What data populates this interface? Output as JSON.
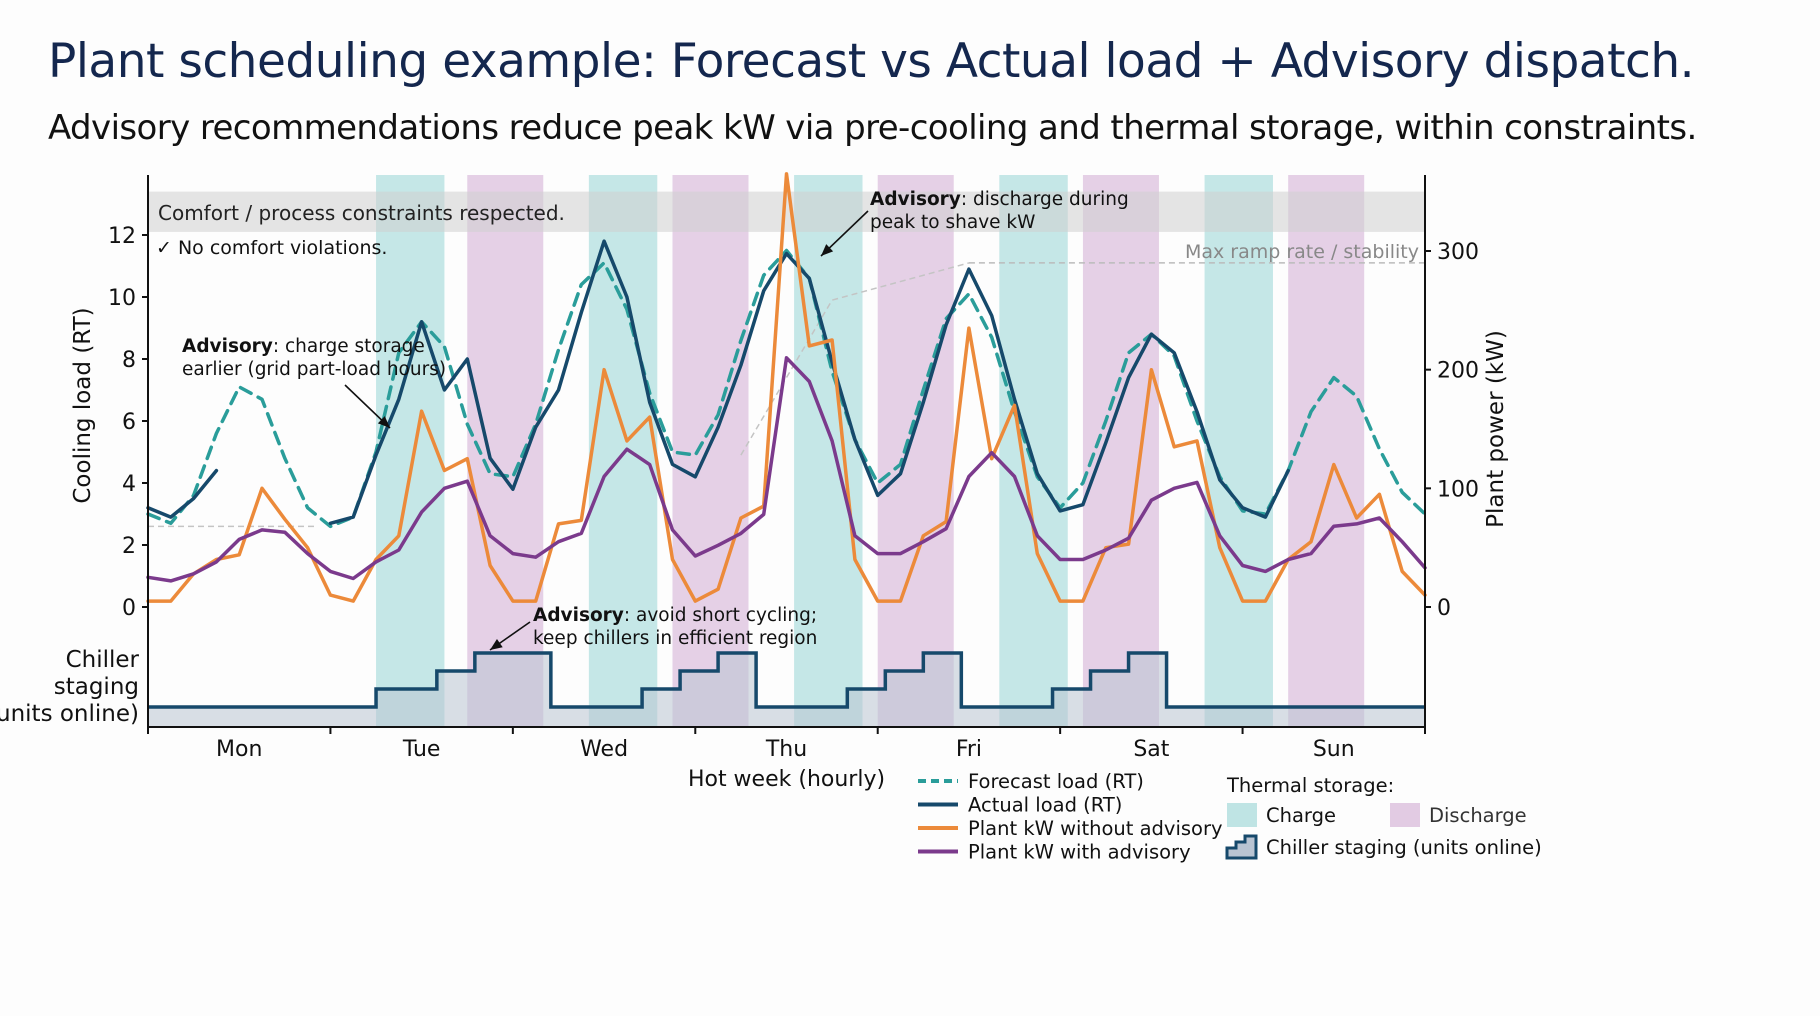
{
  "title": "Plant scheduling example: Forecast vs Actual load + Advisory dispatch.",
  "subtitle": "Advisory recommendations reduce peak kW via pre-cooling and thermal storage, within constraints.",
  "colors": {
    "forecast": "#2a9d9a",
    "actual": "#16496b",
    "plant_without": "#ec8a3a",
    "plant_with": "#7b3a8c",
    "charge": "#bfe4e4",
    "discharge": "#e2cbe3",
    "staging_fill": "#b9c4d2",
    "staging_line": "#16496b",
    "constraint_band": "#d9d9d9"
  },
  "chart_data": {
    "type": "line",
    "title": "Plant scheduling example: Forecast vs Actual load + Advisory dispatch.",
    "xlabel": "Hot week (hourly)",
    "ylabel": "Cooling load (RT)",
    "y2label": "Plant power (kW)",
    "x_unit": "hour of week",
    "xlim": [
      0,
      168
    ],
    "ylim": [
      0,
      13.8
    ],
    "y2lim": [
      0,
      345
    ],
    "yticks": [
      0,
      2,
      4,
      6,
      8,
      10,
      12
    ],
    "y2ticks": [
      0,
      100,
      200,
      300
    ],
    "day_labels": [
      "Mon",
      "Tue",
      "Wed",
      "Thu",
      "Fri",
      "Sat",
      "Sun"
    ],
    "grid": false,
    "x": [
      0,
      3,
      6,
      9,
      12,
      15,
      18,
      21,
      24,
      27,
      30,
      33,
      36,
      39,
      42,
      45,
      48,
      51,
      54,
      57,
      60,
      63,
      66,
      69,
      72,
      75,
      78,
      81,
      84,
      87,
      90,
      93,
      96,
      99,
      102,
      105,
      108,
      111,
      114,
      117,
      120,
      123,
      126,
      129,
      132,
      135,
      138,
      141,
      144,
      147,
      150,
      153,
      156,
      159,
      162,
      165,
      168
    ],
    "series": [
      {
        "name": "Forecast load (RT)",
        "axis": "left",
        "style": "dashed",
        "values": [
          3.0,
          2.7,
          3.6,
          5.6,
          7.1,
          6.7,
          4.8,
          3.2,
          2.6,
          2.9,
          5.0,
          8.2,
          9.2,
          8.4,
          5.9,
          4.3,
          4.2,
          5.9,
          8.3,
          10.4,
          11.1,
          9.6,
          6.9,
          5.0,
          4.9,
          6.2,
          8.6,
          10.7,
          11.5,
          10.6,
          7.6,
          5.4,
          4.0,
          4.6,
          7.0,
          9.3,
          10.1,
          8.7,
          6.3,
          4.2,
          3.2,
          4.0,
          6.0,
          8.2,
          8.8,
          8.1,
          6.0,
          4.2,
          3.1,
          3.0,
          4.4,
          6.3,
          7.4,
          6.8,
          5.1,
          3.7,
          3.0
        ]
      },
      {
        "name": "Actual load (RT)",
        "axis": "left",
        "style": "solid",
        "values": [
          3.2,
          2.9,
          3.5,
          4.4,
          null,
          null,
          null,
          null,
          2.7,
          2.9,
          4.9,
          6.7,
          9.2,
          7.0,
          8.0,
          4.8,
          3.8,
          5.8,
          7.0,
          9.5,
          11.8,
          10.0,
          6.6,
          4.6,
          4.2,
          5.8,
          7.8,
          10.2,
          11.4,
          10.6,
          7.9,
          5.4,
          3.6,
          4.3,
          6.6,
          9.1,
          10.9,
          9.4,
          6.7,
          4.3,
          3.1,
          3.3,
          5.3,
          7.4,
          8.8,
          8.2,
          6.3,
          4.1,
          3.2,
          2.9,
          4.4,
          null,
          null,
          null,
          null,
          null,
          null
        ]
      },
      {
        "name": "Plant kW without advisory",
        "axis": "right",
        "style": "solid",
        "values": [
          5,
          5,
          28,
          40,
          44,
          100,
          74,
          50,
          10,
          5,
          40,
          60,
          165,
          115,
          125,
          35,
          5,
          5,
          70,
          73,
          200,
          140,
          160,
          40,
          5,
          15,
          75,
          85,
          365,
          220,
          225,
          40,
          5,
          5,
          60,
          72,
          235,
          125,
          170,
          45,
          5,
          5,
          50,
          53,
          200,
          135,
          140,
          50,
          5,
          5,
          40,
          55,
          120,
          75,
          95,
          30,
          10
        ]
      },
      {
        "name": "Plant kW with advisory",
        "axis": "right",
        "style": "solid",
        "values": [
          25,
          22,
          28,
          38,
          57,
          65,
          63,
          45,
          30,
          24,
          38,
          48,
          80,
          100,
          106,
          60,
          45,
          42,
          55,
          62,
          110,
          133,
          120,
          65,
          43,
          52,
          62,
          78,
          210,
          190,
          140,
          60,
          45,
          45,
          55,
          66,
          110,
          130,
          110,
          60,
          40,
          40,
          48,
          58,
          90,
          100,
          105,
          60,
          35,
          30,
          40,
          45,
          68,
          70,
          75,
          55,
          33
        ]
      }
    ],
    "thermal_storage": {
      "charge_windows_hours": [
        [
          30,
          39
        ],
        [
          58,
          67
        ],
        [
          85,
          94
        ],
        [
          112,
          121
        ],
        [
          139,
          148
        ]
      ],
      "discharge_windows_hours": [
        [
          42,
          52
        ],
        [
          69,
          79
        ],
        [
          96,
          106
        ],
        [
          123,
          133
        ],
        [
          150,
          160
        ]
      ]
    },
    "chiller_staging": {
      "label": "Chiller staging (units online)",
      "steps": [
        [
          0,
          1
        ],
        [
          30,
          2
        ],
        [
          38,
          3
        ],
        [
          43,
          4
        ],
        [
          53,
          1
        ],
        [
          65,
          2
        ],
        [
          70,
          3
        ],
        [
          75,
          4
        ],
        [
          80,
          1
        ],
        [
          92,
          2
        ],
        [
          97,
          3
        ],
        [
          102,
          4
        ],
        [
          107,
          1
        ],
        [
          119,
          2
        ],
        [
          124,
          3
        ],
        [
          129,
          4
        ],
        [
          134,
          1
        ],
        [
          168,
          1
        ]
      ],
      "max_units": 4
    },
    "reference_lines": {
      "max_ramp_label": "Max ramp rate / stability",
      "max_ramp_kW": 290
    },
    "constraint_band": {
      "label": "Comfort / process constraints respected.",
      "note": "✓ No comfort violations.",
      "range_RT": [
        12.1,
        13.4
      ]
    },
    "annotations": [
      {
        "bold": "Advisory",
        "text": ": charge storage",
        "text2": "earlier (grid part-load hours)",
        "target_hour": 34,
        "target_RT": 5.8
      },
      {
        "bold": "Advisory",
        "text": ": discharge during",
        "text2": "peak to shave kW",
        "target_hour": 88,
        "target_RT": 11.5
      },
      {
        "bold": "Advisory",
        "text": ": avoid short cycling;",
        "text2": "keep chillers in efficient region",
        "target_hour": 49,
        "target_RT": -1.4
      }
    ],
    "legend": {
      "placement": "bottom-right",
      "line_items": [
        "Forecast load (RT)",
        "Actual load (RT)",
        "Plant kW without advisory",
        "Plant kW with advisory"
      ],
      "storage_title": "Thermal storage:",
      "charge_label": "Charge",
      "discharge_label": "Discharge",
      "staging_label": "Chiller staging (units online)"
    },
    "staging_axis_label": [
      "Chiller",
      "staging",
      "(units online)"
    ]
  }
}
